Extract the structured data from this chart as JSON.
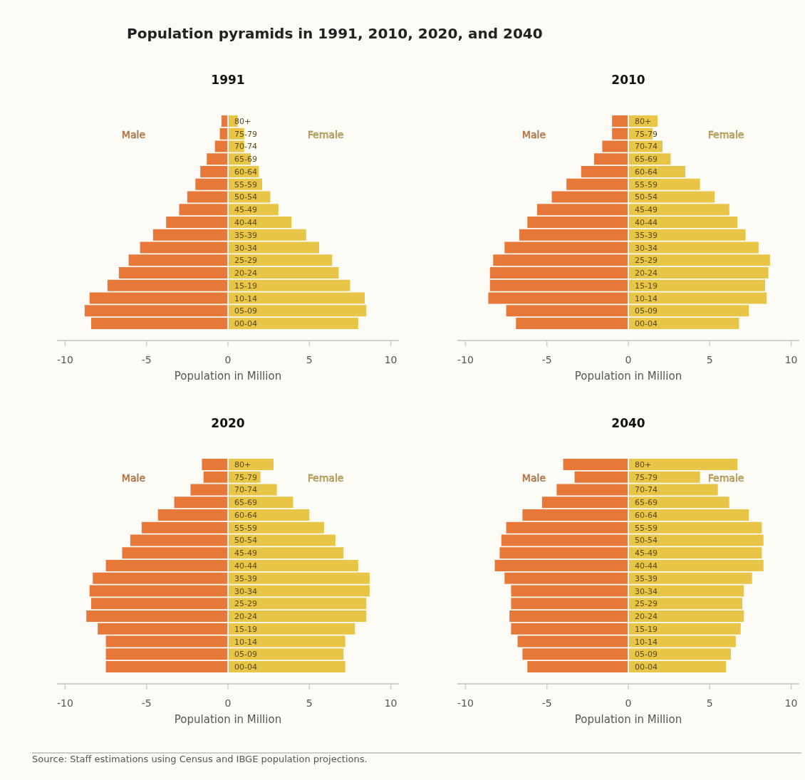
{
  "chart_data": [
    {
      "type": "bar",
      "orientation": "horizontal",
      "stacked": true,
      "title": "1991",
      "xlabel": "Population in Million",
      "xlim": [
        -10.5,
        10.5
      ],
      "xticks": [
        -10,
        -5,
        0,
        5,
        10
      ],
      "legend": false,
      "grid": false,
      "annotations": [
        "Population pyramids in 1991, 2010, 2020, and 2040",
        "Source: Staff estimations using Census and IBGE population projections."
      ],
      "categories": [
        "80+",
        "75-79",
        "70-74",
        "65-69",
        "60-64",
        "55-59",
        "50-54",
        "45-49",
        "40-44",
        "35-39",
        "30-34",
        "25-29",
        "20-24",
        "15-19",
        "10-14",
        "05-09",
        "00-04"
      ],
      "series": [
        {
          "name": "Male",
          "color": "#e8783a",
          "values": [
            -0.4,
            -0.5,
            -0.8,
            -1.3,
            -1.7,
            -2.0,
            -2.5,
            -3.0,
            -3.8,
            -4.6,
            -5.4,
            -6.1,
            -6.7,
            -7.4,
            -8.5,
            -8.8,
            -8.4
          ]
        },
        {
          "name": "Female",
          "color": "#e8c547",
          "values": [
            0.6,
            1.0,
            1.0,
            1.4,
            1.9,
            2.1,
            2.6,
            3.1,
            3.9,
            4.8,
            5.6,
            6.4,
            6.8,
            7.5,
            8.4,
            8.5,
            8.0
          ]
        }
      ]
    },
    {
      "type": "bar",
      "orientation": "horizontal",
      "stacked": true,
      "title": "2010",
      "xlabel": "Population in Million",
      "xlim": [
        -10.5,
        10.5
      ],
      "xticks": [
        -10,
        -5,
        0,
        5,
        10
      ],
      "legend": false,
      "grid": false,
      "categories": [
        "80+",
        "75-79",
        "70-74",
        "65-69",
        "60-64",
        "55-59",
        "50-54",
        "45-49",
        "40-44",
        "35-39",
        "30-34",
        "25-29",
        "20-24",
        "15-19",
        "10-14",
        "05-09",
        "00-04"
      ],
      "series": [
        {
          "name": "Male",
          "color": "#e8783a",
          "values": [
            -1.0,
            -1.0,
            -1.6,
            -2.1,
            -2.9,
            -3.8,
            -4.7,
            -5.6,
            -6.2,
            -6.7,
            -7.6,
            -8.3,
            -8.5,
            -8.5,
            -8.6,
            -7.5,
            -6.9
          ]
        },
        {
          "name": "Female",
          "color": "#e8c547",
          "values": [
            1.8,
            1.5,
            2.1,
            2.6,
            3.5,
            4.4,
            5.3,
            6.2,
            6.7,
            7.2,
            8.0,
            8.7,
            8.6,
            8.4,
            8.5,
            7.4,
            6.8
          ]
        }
      ]
    },
    {
      "type": "bar",
      "orientation": "horizontal",
      "stacked": true,
      "title": "2020",
      "xlabel": "Population in Million",
      "xlim": [
        -10.5,
        10.5
      ],
      "xticks": [
        -10,
        -5,
        0,
        5,
        10
      ],
      "legend": false,
      "grid": false,
      "categories": [
        "80+",
        "75-79",
        "70-74",
        "65-69",
        "60-64",
        "55-59",
        "50-54",
        "45-49",
        "40-44",
        "35-39",
        "30-34",
        "25-29",
        "20-24",
        "15-19",
        "10-14",
        "05-09",
        "00-04"
      ],
      "series": [
        {
          "name": "Male",
          "color": "#e8783a",
          "values": [
            -1.6,
            -1.5,
            -2.3,
            -3.3,
            -4.3,
            -5.3,
            -6.0,
            -6.5,
            -7.5,
            -8.3,
            -8.5,
            -8.4,
            -8.7,
            -8.0,
            -7.5,
            -7.5,
            -7.5
          ]
        },
        {
          "name": "Female",
          "color": "#e8c547",
          "values": [
            2.8,
            2.0,
            3.0,
            4.0,
            5.0,
            5.9,
            6.6,
            7.1,
            8.0,
            8.7,
            8.7,
            8.5,
            8.5,
            7.8,
            7.2,
            7.1,
            7.2
          ]
        }
      ]
    },
    {
      "type": "bar",
      "orientation": "horizontal",
      "stacked": true,
      "title": "2040",
      "xlabel": "Population in Million",
      "xlim": [
        -10.5,
        10.5
      ],
      "xticks": [
        -10,
        -5,
        0,
        5,
        10
      ],
      "legend": false,
      "grid": false,
      "categories": [
        "80+",
        "75-79",
        "70-74",
        "65-69",
        "60-64",
        "55-59",
        "50-54",
        "45-49",
        "40-44",
        "35-39",
        "30-34",
        "25-29",
        "20-24",
        "15-19",
        "10-14",
        "05-09",
        "00-04"
      ],
      "series": [
        {
          "name": "Male",
          "color": "#e8783a",
          "values": [
            -4.0,
            -3.3,
            -4.4,
            -5.3,
            -6.5,
            -7.5,
            -7.8,
            -7.9,
            -8.2,
            -7.6,
            -7.2,
            -7.2,
            -7.3,
            -7.2,
            -6.8,
            -6.5,
            -6.2
          ]
        },
        {
          "name": "Female",
          "color": "#e8c547",
          "values": [
            6.7,
            4.4,
            5.5,
            6.2,
            7.4,
            8.2,
            8.3,
            8.2,
            8.3,
            7.6,
            7.1,
            7.0,
            7.1,
            6.9,
            6.6,
            6.3,
            6.0
          ]
        }
      ]
    }
  ]
}
